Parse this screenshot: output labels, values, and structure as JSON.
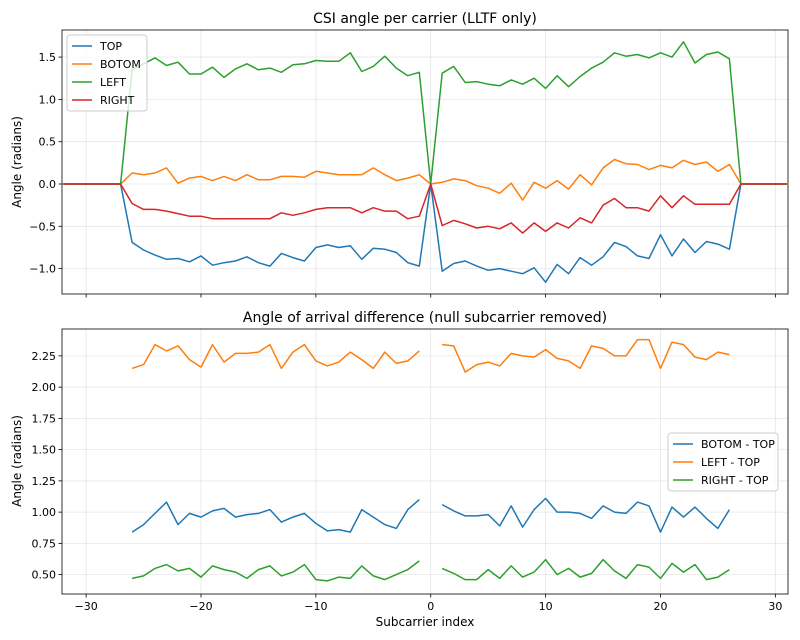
{
  "chart_data": [
    {
      "type": "line",
      "title": "CSI angle per carrier (LLTF only)",
      "xlabel": "",
      "ylabel": "Angle (radians)",
      "xlim": [
        -32.1,
        31.1
      ],
      "ylim": [
        -1.3,
        1.82
      ],
      "xticks": [
        -30,
        -20,
        -10,
        0,
        10,
        20,
        30
      ],
      "xtick_labels_visible": false,
      "yticks": [
        1.5,
        1.0,
        0.5,
        0.0,
        -0.5,
        -1.0
      ],
      "ytick_labels": [
        "1.5",
        "1.0",
        "0.5",
        "0.0",
        "−0.5",
        "−1.0"
      ],
      "grid": true,
      "legend": "top-left",
      "x": [
        -32,
        -31,
        -30,
        -29,
        -28,
        -27,
        -26,
        -25,
        -24,
        -23,
        -22,
        -21,
        -20,
        -19,
        -18,
        -17,
        -16,
        -15,
        -14,
        -13,
        -12,
        -11,
        -10,
        -9,
        -8,
        -7,
        -6,
        -5,
        -4,
        -3,
        -2,
        -1,
        0,
        1,
        2,
        3,
        4,
        5,
        6,
        7,
        8,
        9,
        10,
        11,
        12,
        13,
        14,
        15,
        16,
        17,
        18,
        19,
        20,
        21,
        22,
        23,
        24,
        25,
        26,
        27,
        28,
        29,
        30,
        31
      ],
      "series": [
        {
          "name": "TOP",
          "color": "#1f77b4",
          "values": [
            0,
            0,
            0,
            0,
            0,
            0,
            -0.69,
            -0.78,
            -0.84,
            -0.89,
            -0.88,
            -0.92,
            -0.85,
            -0.96,
            -0.93,
            -0.91,
            -0.86,
            -0.93,
            -0.97,
            -0.82,
            -0.87,
            -0.91,
            -0.75,
            -0.72,
            -0.75,
            -0.73,
            -0.89,
            -0.76,
            -0.77,
            -0.81,
            -0.93,
            -0.97,
            0,
            -1.03,
            -0.94,
            -0.91,
            -0.97,
            -1.02,
            -1.0,
            -1.03,
            -1.06,
            -0.99,
            -1.16,
            -0.95,
            -1.06,
            -0.87,
            -0.96,
            -0.86,
            -0.69,
            -0.74,
            -0.85,
            -0.88,
            -0.6,
            -0.85,
            -0.65,
            -0.81,
            -0.68,
            -0.71,
            -0.77,
            0,
            0,
            0,
            0,
            0
          ]
        },
        {
          "name": "BOTOM",
          "color": "#ff7f0e",
          "values": [
            0,
            0,
            0,
            0,
            0,
            0,
            0.13,
            0.11,
            0.13,
            0.19,
            0.01,
            0.07,
            0.09,
            0.04,
            0.09,
            0.04,
            0.11,
            0.05,
            0.05,
            0.09,
            0.09,
            0.08,
            0.15,
            0.13,
            0.11,
            0.11,
            0.11,
            0.19,
            0.11,
            0.04,
            0.07,
            0.11,
            0,
            0.02,
            0.06,
            0.04,
            -0.02,
            -0.05,
            -0.11,
            0.01,
            -0.19,
            0.02,
            -0.05,
            0.04,
            -0.06,
            0.11,
            -0.01,
            0.19,
            0.29,
            0.24,
            0.23,
            0.17,
            0.22,
            0.19,
            0.28,
            0.23,
            0.26,
            0.15,
            0.23,
            0,
            0,
            0,
            0,
            0
          ]
        },
        {
          "name": "LEFT",
          "color": "#2ca02c",
          "values": [
            0,
            0,
            0,
            0,
            0,
            0,
            1.35,
            1.42,
            1.49,
            1.4,
            1.44,
            1.3,
            1.3,
            1.38,
            1.26,
            1.36,
            1.42,
            1.35,
            1.37,
            1.32,
            1.41,
            1.42,
            1.46,
            1.45,
            1.45,
            1.55,
            1.33,
            1.39,
            1.51,
            1.37,
            1.28,
            1.32,
            0,
            1.31,
            1.39,
            1.2,
            1.21,
            1.18,
            1.16,
            1.23,
            1.18,
            1.25,
            1.13,
            1.28,
            1.15,
            1.27,
            1.37,
            1.44,
            1.55,
            1.51,
            1.53,
            1.49,
            1.55,
            1.5,
            1.68,
            1.43,
            1.53,
            1.56,
            1.48,
            0,
            0,
            0,
            0,
            0
          ]
        },
        {
          "name": "RIGHT",
          "color": "#d62728",
          "values": [
            0,
            0,
            0,
            0,
            0,
            0,
            -0.23,
            -0.3,
            -0.3,
            -0.32,
            -0.35,
            -0.38,
            -0.38,
            -0.41,
            -0.41,
            -0.41,
            -0.41,
            -0.41,
            -0.41,
            -0.34,
            -0.37,
            -0.34,
            -0.3,
            -0.28,
            -0.28,
            -0.28,
            -0.34,
            -0.28,
            -0.32,
            -0.32,
            -0.41,
            -0.38,
            0,
            -0.49,
            -0.43,
            -0.47,
            -0.52,
            -0.5,
            -0.53,
            -0.46,
            -0.58,
            -0.46,
            -0.56,
            -0.46,
            -0.52,
            -0.4,
            -0.46,
            -0.25,
            -0.17,
            -0.28,
            -0.28,
            -0.32,
            -0.14,
            -0.28,
            -0.14,
            -0.24,
            -0.24,
            -0.24,
            -0.24,
            0,
            0,
            0,
            0,
            0
          ]
        }
      ]
    },
    {
      "type": "line",
      "title": "Angle of arrival difference (null subcarrier removed)",
      "xlabel": "Subcarrier index",
      "ylabel": "Angle (radians)",
      "xlim": [
        -32.1,
        31.1
      ],
      "ylim": [
        0.345,
        2.465
      ],
      "xticks": [
        -30,
        -20,
        -10,
        0,
        10,
        20,
        30
      ],
      "xtick_labels": [
        "−30",
        "−20",
        "−10",
        "0",
        "10",
        "20",
        "30"
      ],
      "yticks": [
        2.25,
        2.0,
        1.75,
        1.5,
        1.25,
        1.0,
        0.75,
        0.5
      ],
      "ytick_labels": [
        "2.25",
        "2.00",
        "1.75",
        "1.50",
        "1.25",
        "1.00",
        "0.75",
        "0.50"
      ],
      "grid": true,
      "legend": "center-right",
      "x": [
        -26,
        -25,
        -24,
        -23,
        -22,
        -21,
        -20,
        -19,
        -18,
        -17,
        -16,
        -15,
        -14,
        -13,
        -12,
        -11,
        -10,
        -9,
        -8,
        -7,
        -6,
        -5,
        -4,
        -3,
        -2,
        -1,
        0,
        1,
        2,
        3,
        4,
        5,
        6,
        7,
        8,
        9,
        10,
        11,
        12,
        13,
        14,
        15,
        16,
        17,
        18,
        19,
        20,
        21,
        22,
        23,
        24,
        25,
        26
      ],
      "series": [
        {
          "name": "BOTOM - TOP",
          "color": "#1f77b4",
          "values": [
            0.84,
            0.9,
            0.99,
            1.08,
            0.9,
            0.99,
            0.96,
            1.01,
            1.03,
            0.96,
            0.98,
            0.99,
            1.02,
            0.92,
            0.96,
            0.99,
            0.91,
            0.85,
            0.86,
            0.84,
            1.02,
            0.96,
            0.9,
            0.87,
            1.02,
            1.1,
            null,
            1.06,
            1.01,
            0.97,
            0.97,
            0.98,
            0.89,
            1.05,
            0.88,
            1.02,
            1.11,
            1.0,
            1.0,
            0.99,
            0.95,
            1.05,
            1.0,
            0.99,
            1.08,
            1.05,
            0.84,
            1.04,
            0.96,
            1.04,
            0.95,
            0.87,
            1.02
          ]
        },
        {
          "name": "LEFT - TOP",
          "color": "#ff7f0e",
          "values": [
            2.15,
            2.18,
            2.34,
            2.29,
            2.33,
            2.22,
            2.16,
            2.34,
            2.2,
            2.27,
            2.27,
            2.28,
            2.34,
            2.15,
            2.28,
            2.34,
            2.21,
            2.17,
            2.2,
            2.28,
            2.22,
            2.15,
            2.28,
            2.19,
            2.21,
            2.29,
            null,
            2.34,
            2.33,
            2.12,
            2.18,
            2.2,
            2.17,
            2.27,
            2.25,
            2.24,
            2.3,
            2.23,
            2.21,
            2.15,
            2.33,
            2.31,
            2.25,
            2.25,
            2.38,
            2.38,
            2.15,
            2.36,
            2.34,
            2.24,
            2.22,
            2.28,
            2.26
          ]
        },
        {
          "name": "RIGHT - TOP",
          "color": "#2ca02c",
          "values": [
            0.47,
            0.49,
            0.55,
            0.58,
            0.53,
            0.55,
            0.48,
            0.57,
            0.54,
            0.52,
            0.47,
            0.54,
            0.57,
            0.49,
            0.52,
            0.58,
            0.46,
            0.45,
            0.48,
            0.47,
            0.57,
            0.49,
            0.46,
            0.5,
            0.54,
            0.61,
            null,
            0.55,
            0.51,
            0.46,
            0.46,
            0.54,
            0.47,
            0.57,
            0.48,
            0.52,
            0.62,
            0.5,
            0.55,
            0.48,
            0.51,
            0.62,
            0.53,
            0.47,
            0.58,
            0.56,
            0.47,
            0.59,
            0.52,
            0.58,
            0.46,
            0.48,
            0.54
          ]
        }
      ]
    }
  ]
}
